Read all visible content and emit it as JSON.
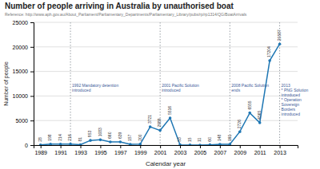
{
  "chart_data": {
    "type": "line",
    "title": "Number of people arriving in Australia by unauthorised boat",
    "subtitle": "Reference: http://www.aph.gov.au/About_Parliament/Parliamentary_Departments/Parliamentary_Library/pubs/rp/rp1314/QG/BoatArrivals",
    "x_label": "Calendar year",
    "y_label": "Number of people",
    "x": [
      1989,
      1990,
      1991,
      1992,
      1993,
      1994,
      1995,
      1996,
      1997,
      1998,
      1999,
      2000,
      2001,
      2002,
      2003,
      2004,
      2005,
      2006,
      2007,
      2008,
      2009,
      2010,
      2011,
      2012,
      2013
    ],
    "values": [
      28,
      198,
      214,
      216,
      81,
      953,
      1083,
      660,
      639,
      157,
      200,
      3721,
      2989,
      5516,
      53,
      15,
      11,
      60,
      148,
      161,
      2726,
      6555,
      4565,
      17204,
      20587
    ],
    "marker": "circle",
    "data_labels": true,
    "grid": true,
    "xlim": [
      1988.3,
      2014.8
    ],
    "xticks": [
      1989,
      1991,
      1993,
      1995,
      1997,
      1999,
      2001,
      2003,
      2005,
      2007,
      2009,
      2011,
      2013
    ],
    "ylim": [
      0,
      25000
    ],
    "yticks": [
      0,
      5000,
      10000,
      15000,
      20000,
      25000
    ],
    "annotations": [
      {
        "x": 1992,
        "y": 12500,
        "text": "1992 Mandatory detention\nintroduced"
      },
      {
        "x": 2001,
        "y": 12500,
        "text": "2001 Pacific Solution\nintroduced"
      },
      {
        "x": 2008,
        "y": 12500,
        "text": "2008 Pacific Solution\nends"
      },
      {
        "x": 2013,
        "y": 12500,
        "text": "2013\n* PNG Solution\nintroduced\n* Operation\nSovereign\nBorders\nintroduced"
      }
    ]
  }
}
